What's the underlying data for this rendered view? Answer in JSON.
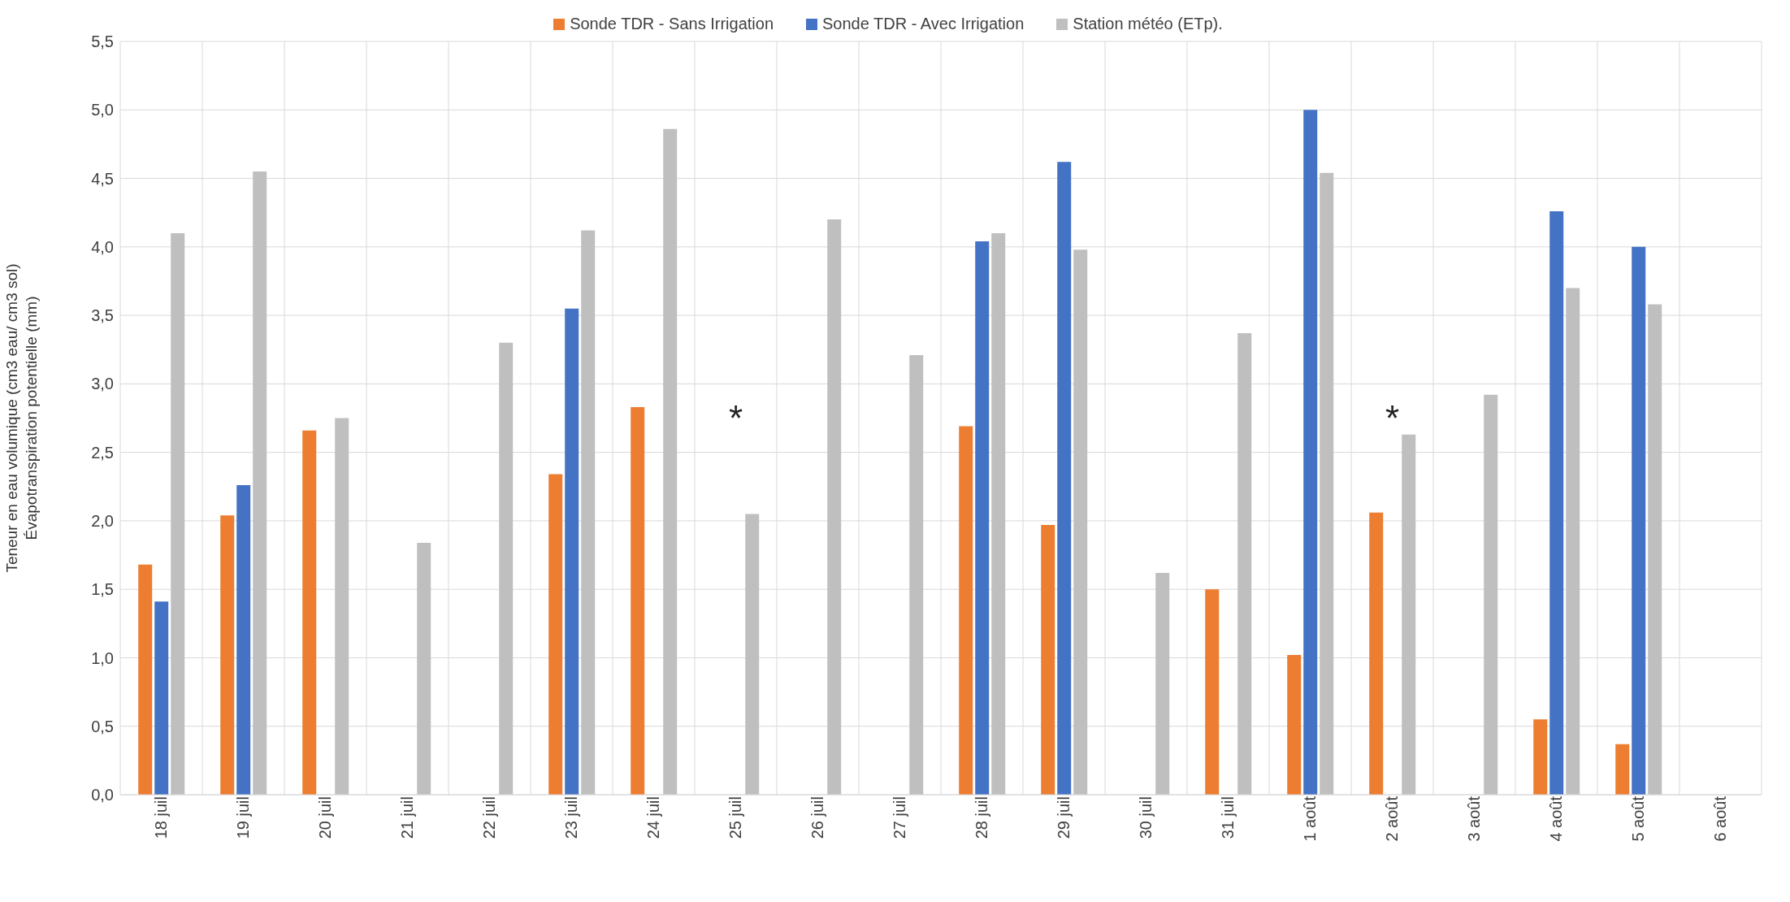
{
  "chart_data": {
    "type": "bar",
    "ylabel": "Teneur en eau volumique (cm3 eau/ cm3 sol)\nÉvapotranspiration potentielle (mm)",
    "categories": [
      "18 juil",
      "19 juil",
      "20 juil",
      "21 juil",
      "22 juil",
      "23 juil",
      "24 juil",
      "25 juil",
      "26 juil",
      "27 juil",
      "28 juil",
      "29 juil",
      "30 juil",
      "31 juil",
      "1 août",
      "2 août",
      "3 août",
      "4 août",
      "5 août",
      "6 août"
    ],
    "series": [
      {
        "name": "Sonde TDR - Sans Irrigation",
        "color": "#ed7d31",
        "values": [
          1.68,
          2.04,
          2.66,
          null,
          null,
          2.34,
          2.83,
          null,
          null,
          null,
          2.69,
          1.97,
          null,
          1.5,
          1.02,
          2.06,
          null,
          0.55,
          0.37,
          null
        ]
      },
      {
        "name": "Sonde TDR - Avec Irrigation",
        "color": "#4472c4",
        "values": [
          1.41,
          2.26,
          null,
          null,
          null,
          3.55,
          null,
          null,
          null,
          null,
          4.04,
          4.62,
          null,
          null,
          5.0,
          null,
          null,
          4.26,
          4.0,
          null
        ]
      },
      {
        "name": "Station météo (ETp).",
        "color": "#bfbfbf",
        "values": [
          4.1,
          4.55,
          2.75,
          1.84,
          3.3,
          4.12,
          4.86,
          2.05,
          4.2,
          3.21,
          4.1,
          3.98,
          1.62,
          3.37,
          4.54,
          2.63,
          2.92,
          3.7,
          3.58,
          null
        ]
      }
    ],
    "ylim": [
      0,
      5.5
    ],
    "yticks": [
      {
        "value": 0,
        "label": "0,0"
      },
      {
        "value": 0.5,
        "label": "0,5"
      },
      {
        "value": 1,
        "label": "1,0"
      },
      {
        "value": 1.5,
        "label": "1,5"
      },
      {
        "value": 2,
        "label": "2,0"
      },
      {
        "value": 2.5,
        "label": "2,5"
      },
      {
        "value": 3,
        "label": "3,0"
      },
      {
        "value": 3.5,
        "label": "3,5"
      },
      {
        "value": 4,
        "label": "4,0"
      },
      {
        "value": 4.5,
        "label": "4,5"
      },
      {
        "value": 5,
        "label": "5,0"
      },
      {
        "value": 5.5,
        "label": "5,5"
      }
    ],
    "annotations": [
      "*",
      "*"
    ],
    "grid": true,
    "legend": "top"
  }
}
